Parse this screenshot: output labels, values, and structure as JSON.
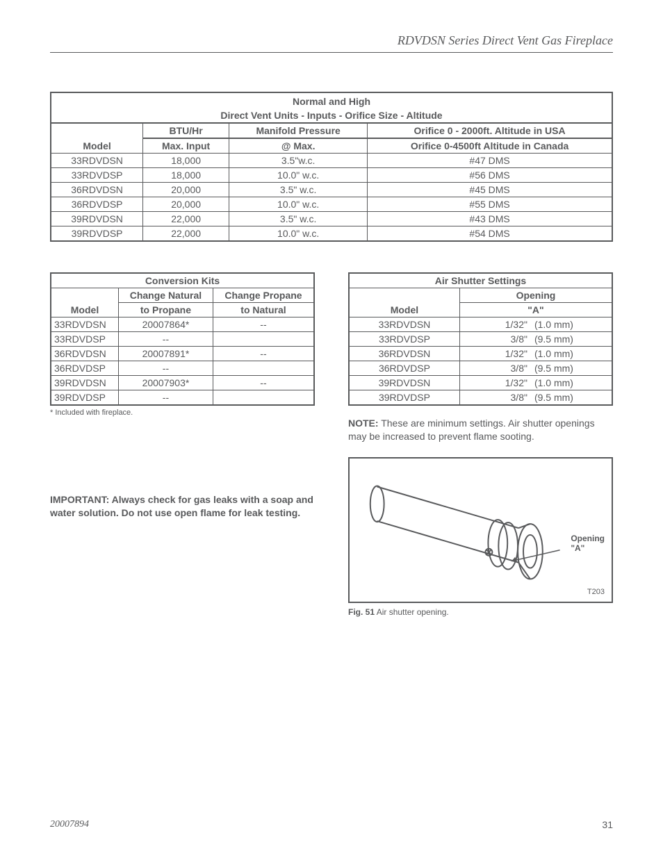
{
  "header": {
    "title": "RDVDSN Series Direct Vent Gas Fireplace"
  },
  "table1": {
    "title1": "Normal and High",
    "title2": "Direct Vent Units - Inputs - Orifice Size - Altitude",
    "headers": {
      "model": "Model",
      "btu1": "BTU/Hr",
      "btu2": "Max. Input",
      "mp1": "Manifold Pressure",
      "mp2": "@ Max.",
      "or1": "Orifice 0 - 2000ft. Altitude in USA",
      "or2": "Orifice 0-4500ft Altitude in Canada"
    },
    "rows": [
      {
        "model": "33RDVDSN",
        "btu": "18,000",
        "mp": "3.5\"w.c.",
        "orifice": "#47 DMS"
      },
      {
        "model": "33RDVDSP",
        "btu": "18,000",
        "mp": "10.0\" w.c.",
        "orifice": "#56 DMS"
      },
      {
        "model": "36RDVDSN",
        "btu": "20,000",
        "mp": "3.5\" w.c.",
        "orifice": "#45 DMS"
      },
      {
        "model": "36RDVDSP",
        "btu": "20,000",
        "mp": "10.0\" w.c.",
        "orifice": "#55 DMS"
      },
      {
        "model": "39RDVDSN",
        "btu": "22,000",
        "mp": "3.5\" w.c.",
        "orifice": "#43 DMS"
      },
      {
        "model": "39RDVDSP",
        "btu": "22,000",
        "mp": "10.0\" w.c.",
        "orifice": "#54 DMS"
      }
    ]
  },
  "table2": {
    "title": "Conversion Kits",
    "headers": {
      "model": "Model",
      "n2p1": "Change Natural",
      "n2p2": "to Propane",
      "p2n1": "Change Propane",
      "p2n2": "to Natural"
    },
    "rows": [
      {
        "model": "33RDVDSN",
        "n2p": "20007864*",
        "p2n": "--"
      },
      {
        "model": "33RDVDSP",
        "n2p": "--",
        "p2n": ""
      },
      {
        "model": "36RDVDSN",
        "n2p": "20007891*",
        "p2n": "--"
      },
      {
        "model": "36RDVDSP",
        "n2p": "--",
        "p2n": ""
      },
      {
        "model": "39RDVDSN",
        "n2p": "20007903*",
        "p2n": "--"
      },
      {
        "model": "39RDVDSP",
        "n2p": "--",
        "p2n": ""
      }
    ],
    "footnote": "* Included with fireplace."
  },
  "table3": {
    "title": "Air Shutter Settings",
    "headers": {
      "model": "Model",
      "open1": "Opening",
      "open2": "\"A\""
    },
    "rows": [
      {
        "model": "33RDVDSN",
        "in": "1/32\"",
        "mm": "(1.0 mm)"
      },
      {
        "model": "33RDVDSP",
        "in": "3/8\"",
        "mm": "(9.5 mm)"
      },
      {
        "model": "36RDVDSN",
        "in": "1/32\"",
        "mm": "(1.0 mm)"
      },
      {
        "model": "36RDVDSP",
        "in": "3/8\"",
        "mm": "(9.5 mm)"
      },
      {
        "model": "39RDVDSN",
        "in": "1/32\"",
        "mm": "(1.0 mm)"
      },
      {
        "model": "39RDVDSP",
        "in": "3/8\"",
        "mm": "(9.5 mm)"
      }
    ]
  },
  "note": {
    "label": "NOTE:",
    "text": " These are minimum settings. Air shutter openings may be  increased to prevent flame sooting."
  },
  "important": "IMPORTANT: Always check for gas leaks with a soap and water solution. Do not use open flame for leak testing.",
  "figure": {
    "opening_label1": "Opening",
    "opening_label2": "\"A\"",
    "id": "T203",
    "caption_bold": "Fig. 51",
    "caption_rest": "  Air shutter opening."
  },
  "footer": {
    "doc": "20007894",
    "page": "31"
  }
}
